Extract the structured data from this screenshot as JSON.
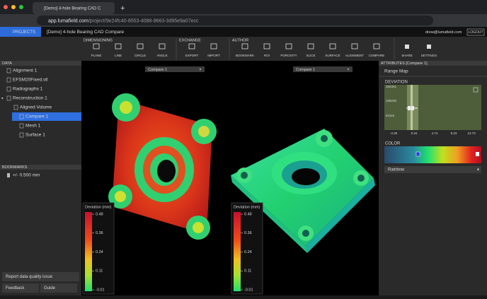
{
  "browser": {
    "tab_title": "[Demo] 4-hole Bearing CAD C",
    "url_host": "app.lumafield.com",
    "url_path": "/project/9e24fc40-8553-4088-9663-3d95e9a07ecc"
  },
  "header": {
    "projects": "PROJECTS",
    "title": "[Demo] 4-hole Bearing CAD Compare",
    "user": "drew@lumafield.com",
    "logout": "LOGOUT"
  },
  "toolbar": {
    "groups": [
      {
        "title": "DIMENSIONING",
        "tools": [
          "PLANE",
          "LINE",
          "CIRCLE",
          "ANGLE"
        ]
      },
      {
        "title": "EXCHANGE",
        "tools": [
          "EXPORT",
          "IMPORT"
        ]
      },
      {
        "title": "AUTHOR",
        "tools": [
          "BOOKMARK",
          "ROI",
          "POROSITY",
          "SLICE",
          "SURFACE",
          "ALIGNMENT",
          "COMPARE"
        ]
      }
    ],
    "extra": [
      "SHARE",
      "SETTINGS"
    ]
  },
  "data_panel": {
    "title": "DATA",
    "items": [
      "Alignment 1",
      "EFSM20Fixed.stl",
      "Radiographs 1",
      "Reconstruction 1",
      "Aligned Volume",
      "Compare 1",
      "Mesh 1",
      "Surface 1"
    ]
  },
  "bookmarks": {
    "title": "BOOKMARKS",
    "items": [
      "+/- 0.500 mm"
    ]
  },
  "footer": {
    "report": "Report data quality issue",
    "feedback": "Feedback",
    "guide": "Guide"
  },
  "viewports": [
    {
      "selector": "Compare 1",
      "legend_title": "Deviation (mm)",
      "legend_ticks": [
        "0.48",
        "0.36",
        "0.24",
        "0.11",
        "-0.01"
      ]
    },
    {
      "selector": "Compare 1",
      "legend_title": "Deviation (mm)",
      "legend_ticks": [
        "0.48",
        "0.36",
        "0.24",
        "0.11",
        "-0.01"
      ]
    }
  ],
  "attributes": {
    "title": "ATTRIBUTES [Compare 1]",
    "tab": "Range Map",
    "deviation": "DEVIATION",
    "hist_y_labels": [
      "162341",
      "108230",
      "54115"
    ],
    "hist_x_labels": [
      "-4.28",
      "0.34",
      "4.74",
      "9.23",
      "13.73"
    ],
    "color": "COLOR",
    "colormap": "Rainbow"
  }
}
